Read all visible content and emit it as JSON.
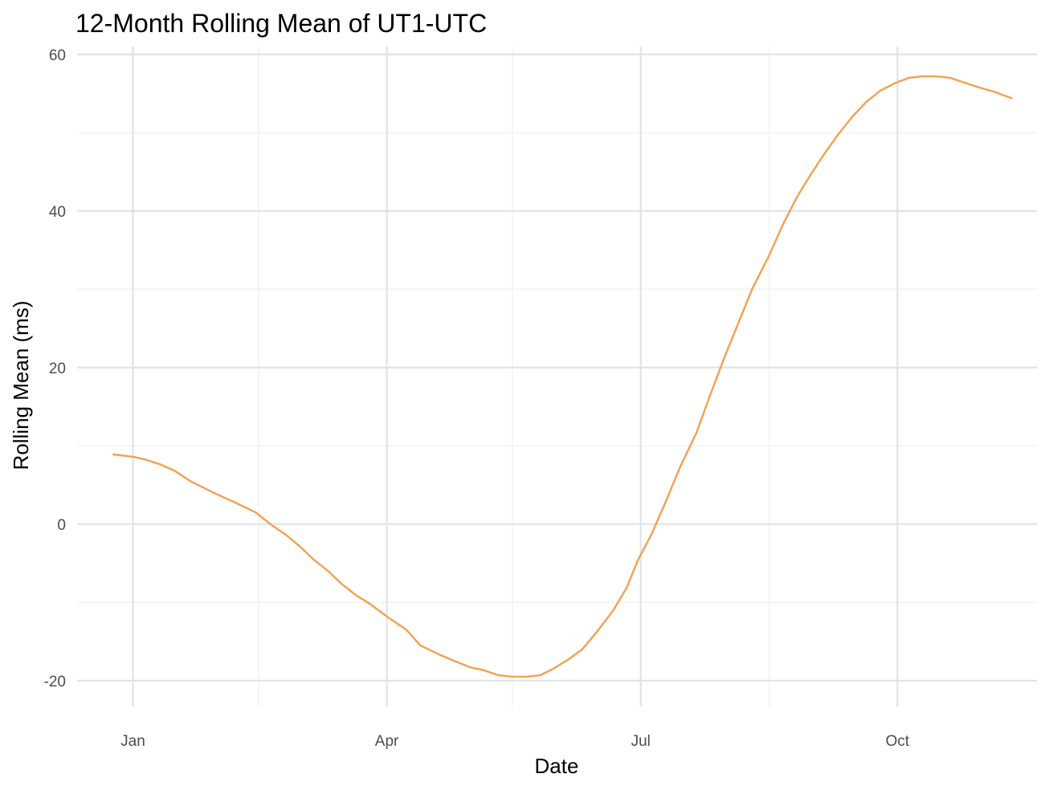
{
  "chart_data": {
    "type": "line",
    "title": "12-Month Rolling Mean of UT1-UTC",
    "xlabel": "Date",
    "ylabel": "Rolling Mean (ms)",
    "x_ticks": [
      {
        "label": "Jan",
        "date": "2024-01-01"
      },
      {
        "label": "Apr",
        "date": "2024-04-01"
      },
      {
        "label": "Jul",
        "date": "2024-07-01"
      },
      {
        "label": "Oct",
        "date": "2024-10-01"
      }
    ],
    "x_minor_ticks": [
      "2024-02-15",
      "2024-05-16",
      "2024-08-16"
    ],
    "y_ticks": [
      -20,
      0,
      20,
      40,
      60
    ],
    "y_minor_ticks": [
      -10,
      10,
      30,
      50
    ],
    "xlim": [
      "2023-12-12",
      "2024-11-20"
    ],
    "ylim": [
      -23.3,
      61
    ],
    "grid": true,
    "colors": {
      "line": "#F5A04F"
    },
    "series": [
      {
        "points": [
          {
            "x": "2023-12-25",
            "y": 8.9
          },
          {
            "x": "2024-01-01",
            "y": 8.6
          },
          {
            "x": "2024-01-05",
            "y": 8.3
          },
          {
            "x": "2024-01-11",
            "y": 7.6
          },
          {
            "x": "2024-01-16",
            "y": 6.8
          },
          {
            "x": "2024-01-22",
            "y": 5.4
          },
          {
            "x": "2024-01-30",
            "y": 4.0
          },
          {
            "x": "2024-02-07",
            "y": 2.7
          },
          {
            "x": "2024-02-14",
            "y": 1.5
          },
          {
            "x": "2024-02-20",
            "y": -0.2
          },
          {
            "x": "2024-02-25",
            "y": -1.4
          },
          {
            "x": "2024-03-01",
            "y": -2.9
          },
          {
            "x": "2024-03-06",
            "y": -4.6
          },
          {
            "x": "2024-03-11",
            "y": -6.0
          },
          {
            "x": "2024-03-16",
            "y": -7.7
          },
          {
            "x": "2024-03-21",
            "y": -9.1
          },
          {
            "x": "2024-03-26",
            "y": -10.2
          },
          {
            "x": "2024-04-01",
            "y": -11.8
          },
          {
            "x": "2024-04-08",
            "y": -13.5
          },
          {
            "x": "2024-04-13",
            "y": -15.5
          },
          {
            "x": "2024-04-20",
            "y": -16.7
          },
          {
            "x": "2024-04-26",
            "y": -17.6
          },
          {
            "x": "2024-05-01",
            "y": -18.3
          },
          {
            "x": "2024-05-06",
            "y": -18.7
          },
          {
            "x": "2024-05-11",
            "y": -19.3
          },
          {
            "x": "2024-05-16",
            "y": -19.5
          },
          {
            "x": "2024-05-21",
            "y": -19.5
          },
          {
            "x": "2024-05-26",
            "y": -19.3
          },
          {
            "x": "2024-05-31",
            "y": -18.4
          },
          {
            "x": "2024-06-05",
            "y": -17.3
          },
          {
            "x": "2024-06-10",
            "y": -16.0
          },
          {
            "x": "2024-06-15",
            "y": -13.9
          },
          {
            "x": "2024-06-21",
            "y": -11.1
          },
          {
            "x": "2024-06-26",
            "y": -8.1
          },
          {
            "x": "2024-06-30",
            "y": -4.6
          },
          {
            "x": "2024-07-05",
            "y": -1.2
          },
          {
            "x": "2024-07-10",
            "y": 2.9
          },
          {
            "x": "2024-07-15",
            "y": 7.2
          },
          {
            "x": "2024-07-21",
            "y": 11.7
          },
          {
            "x": "2024-07-26",
            "y": 16.6
          },
          {
            "x": "2024-07-31",
            "y": 21.3
          },
          {
            "x": "2024-08-05",
            "y": 25.7
          },
          {
            "x": "2024-08-10",
            "y": 30.1
          },
          {
            "x": "2024-08-16",
            "y": 34.3
          },
          {
            "x": "2024-08-21",
            "y": 38.3
          },
          {
            "x": "2024-08-26",
            "y": 41.8
          },
          {
            "x": "2024-08-31",
            "y": 44.7
          },
          {
            "x": "2024-09-05",
            "y": 47.4
          },
          {
            "x": "2024-09-10",
            "y": 49.9
          },
          {
            "x": "2024-09-15",
            "y": 52.1
          },
          {
            "x": "2024-09-20",
            "y": 54.0
          },
          {
            "x": "2024-09-25",
            "y": 55.4
          },
          {
            "x": "2024-09-30",
            "y": 56.3
          },
          {
            "x": "2024-10-05",
            "y": 57.0
          },
          {
            "x": "2024-10-10",
            "y": 57.2
          },
          {
            "x": "2024-10-15",
            "y": 57.2
          },
          {
            "x": "2024-10-20",
            "y": 57.0
          },
          {
            "x": "2024-10-25",
            "y": 56.4
          },
          {
            "x": "2024-10-30",
            "y": 55.8
          },
          {
            "x": "2024-11-05",
            "y": 55.2
          },
          {
            "x": "2024-11-11",
            "y": 54.4
          }
        ]
      }
    ]
  }
}
